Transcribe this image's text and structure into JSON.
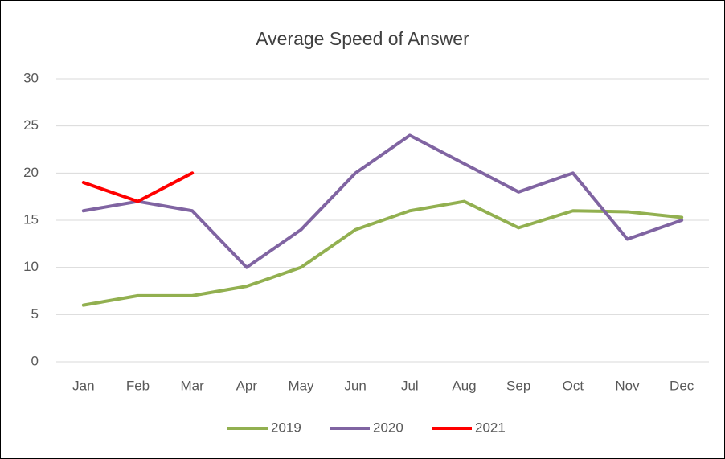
{
  "chart_data": {
    "type": "line",
    "title": "Average Speed of Answer",
    "categories": [
      "Jan",
      "Feb",
      "Mar",
      "Apr",
      "May",
      "Jun",
      "Jul",
      "Aug",
      "Sep",
      "Oct",
      "Nov",
      "Dec"
    ],
    "series": [
      {
        "name": "2019",
        "color": "#92b050",
        "values": [
          6,
          7,
          7,
          8,
          10,
          14,
          16,
          17,
          14.2,
          16,
          15.9,
          15.3
        ]
      },
      {
        "name": "2020",
        "color": "#8064a2",
        "values": [
          16,
          17,
          16,
          10,
          14,
          20,
          24,
          21,
          18,
          20,
          13,
          15
        ]
      },
      {
        "name": "2021",
        "color": "#ff0000",
        "values": [
          19,
          17,
          20,
          null,
          null,
          null,
          null,
          null,
          null,
          null,
          null,
          null
        ]
      }
    ],
    "ylim": [
      0,
      30
    ],
    "yticks": [
      0,
      5,
      10,
      15,
      20,
      25,
      30
    ],
    "grid": true,
    "legend": "bottom"
  }
}
